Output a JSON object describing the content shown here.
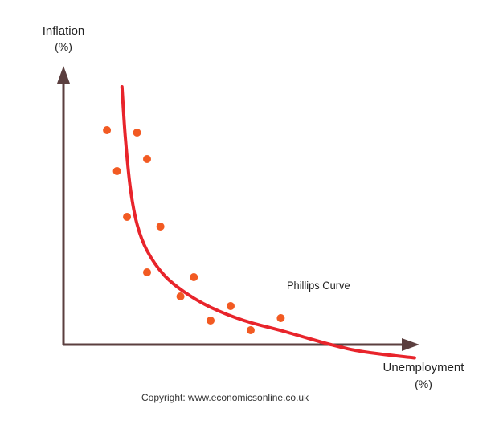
{
  "chart_data": {
    "type": "scatter",
    "title": "",
    "ylabel": "Inflation",
    "ylabel_unit": "(%)",
    "xlabel": "Unemployment",
    "xlabel_unit": "(%)",
    "grid": false,
    "series": [
      {
        "type": "scatter",
        "color": "#f25a22",
        "points": [
          {
            "x": 1.3,
            "y": 8.9
          },
          {
            "x": 2.2,
            "y": 8.8
          },
          {
            "x": 2.5,
            "y": 7.7
          },
          {
            "x": 1.6,
            "y": 7.2
          },
          {
            "x": 1.9,
            "y": 5.3
          },
          {
            "x": 2.9,
            "y": 4.9
          },
          {
            "x": 2.5,
            "y": 3.0
          },
          {
            "x": 3.9,
            "y": 2.8
          },
          {
            "x": 3.5,
            "y": 2.0
          },
          {
            "x": 5.0,
            "y": 1.6
          },
          {
            "x": 4.4,
            "y": 1.0
          },
          {
            "x": 6.5,
            "y": 1.1
          },
          {
            "x": 5.6,
            "y": 0.6
          }
        ]
      },
      {
        "name": "Phillips Curve",
        "type": "line",
        "color": "#e8242b",
        "points": [
          {
            "x": 1.75,
            "y": 10.7
          },
          {
            "x": 1.85,
            "y": 8.6
          },
          {
            "x": 2.0,
            "y": 6.5
          },
          {
            "x": 2.2,
            "y": 5.0
          },
          {
            "x": 2.5,
            "y": 3.9
          },
          {
            "x": 3.0,
            "y": 2.9
          },
          {
            "x": 3.6,
            "y": 2.2
          },
          {
            "x": 4.4,
            "y": 1.55
          },
          {
            "x": 5.4,
            "y": 1.0
          },
          {
            "x": 6.6,
            "y": 0.55
          },
          {
            "x": 8.0,
            "y": 0.0
          },
          {
            "x": 9.0,
            "y": -0.3
          },
          {
            "x": 10.5,
            "y": -0.55
          }
        ]
      }
    ]
  },
  "annotations": {
    "curve_label": "Phillips Curve",
    "copyright": "Copyright: www.economicsonline.co.uk"
  },
  "colors": {
    "axis": "#5b3f3f",
    "dots": "#f25a22",
    "curve": "#e8242b"
  }
}
